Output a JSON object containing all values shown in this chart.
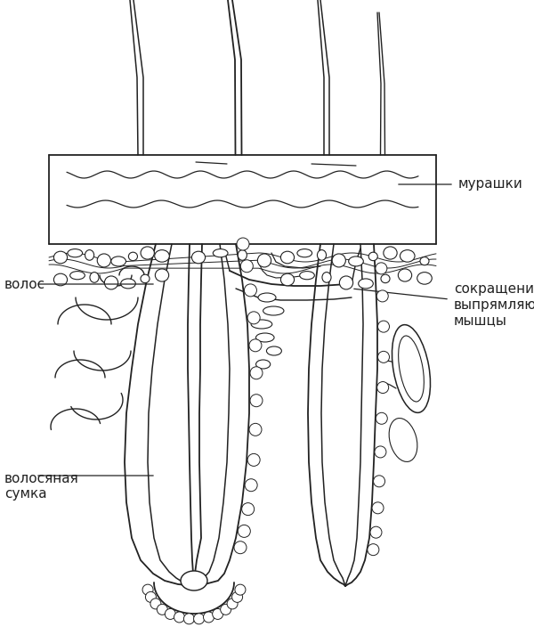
{
  "bg_color": "#ffffff",
  "line_color": "#222222",
  "lw": 1.3,
  "fontsize": 11,
  "label_murashki": "мурашки",
  "label_volos": "волос",
  "label_sokr": "сокращение\nвыпрямляющей\nмышцы",
  "label_sumka": "волосяная\nсумка"
}
